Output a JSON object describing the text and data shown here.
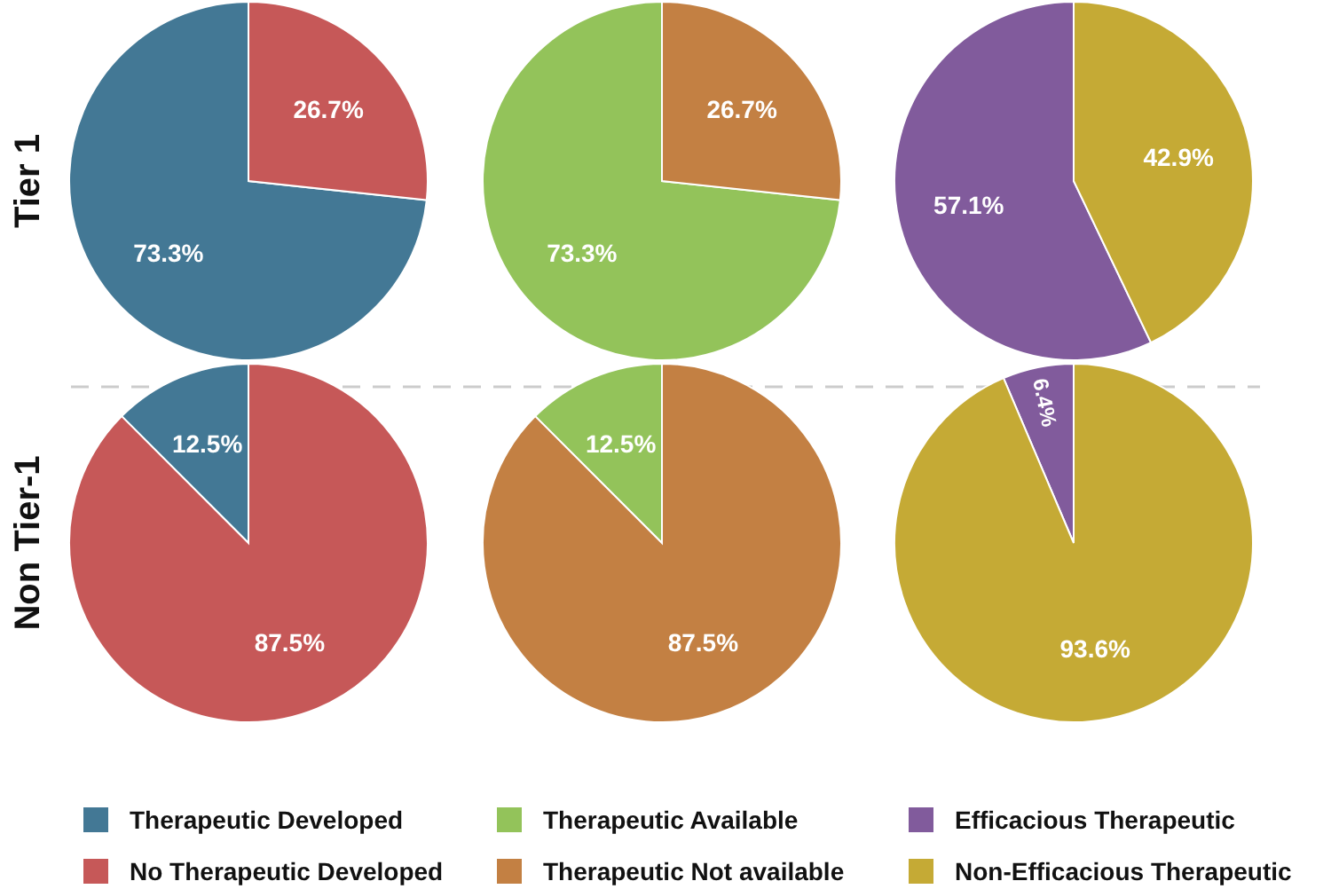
{
  "chart_data": [
    {
      "type": "pie",
      "ylabel": "Tier 1",
      "categories": [
        null,
        null
      ],
      "values": [
        73.3,
        26.7
      ],
      "colors": [
        "#437895",
        "#c65858"
      ],
      "value_labels": [
        "73.3%",
        "26.7%"
      ]
    },
    {
      "type": "pie",
      "categories": [
        null,
        null
      ],
      "values": [
        73.3,
        26.7
      ],
      "colors": [
        "#93c35a",
        "#c38043"
      ],
      "value_labels": [
        "73.3%",
        "26.7%"
      ]
    },
    {
      "type": "pie",
      "categories": [
        null,
        null
      ],
      "values": [
        57.1,
        42.9
      ],
      "colors": [
        "#815b9c",
        "#c5aa35"
      ],
      "value_labels": [
        "57.1%",
        "42.9%"
      ]
    },
    {
      "type": "pie",
      "ylabel": "Non Tier-1",
      "categories": [
        "Therapeutic Developed",
        "No Therapeutic Developed"
      ],
      "values": [
        12.5,
        87.5
      ],
      "colors": [
        "#437895",
        "#c65858"
      ],
      "value_labels": [
        "12.5%",
        "87.5%"
      ],
      "legend": "bottom"
    },
    {
      "type": "pie",
      "categories": [
        "Therapeutic Available",
        "Therapeutic Not available"
      ],
      "values": [
        12.5,
        87.5
      ],
      "colors": [
        "#93c35a",
        "#c38043"
      ],
      "value_labels": [
        "12.5%",
        "87.5%"
      ],
      "legend": "bottom"
    },
    {
      "type": "pie",
      "categories": [
        "Efficacious Therapeutic",
        "Non-Efficacious Therapeutic"
      ],
      "values": [
        6.4,
        93.6
      ],
      "colors": [
        "#815b9c",
        "#c5aa35"
      ],
      "value_labels": [
        "6.4%",
        "93.6%"
      ],
      "legend": "bottom"
    }
  ]
}
